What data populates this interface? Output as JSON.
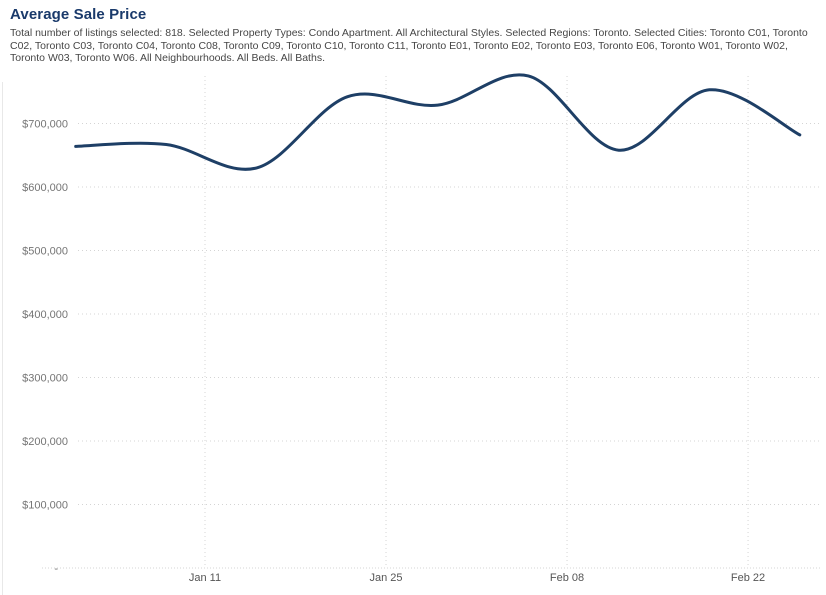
{
  "chart": {
    "title": "Average Sale Price",
    "subtitle": "Total number of listings selected: 818. Selected Property Types: Condo Apartment. All Architectural Styles. Selected Regions: Toronto. Selected Cities: Toronto C01, Toronto C02, Toronto C03, Toronto C04, Toronto C08, Toronto C09, Toronto C10, Toronto C11, Toronto E01, Toronto E02, Toronto E03, Toronto E06, Toronto W01, Toronto W02, Toronto W03, Toronto W06. All Neighbourhoods. All Beds. All Baths.",
    "title_color": "#1a3a6b",
    "subtitle_color": "#464646"
  },
  "chart_data": {
    "type": "line",
    "title": "Average Sale Price",
    "x": [
      "Jan 01",
      "Jan 08",
      "Jan 15",
      "Jan 22",
      "Jan 29",
      "Feb 05",
      "Feb 12",
      "Feb 19",
      "Feb 26"
    ],
    "x_days": [
      0,
      7,
      14,
      21,
      28,
      35,
      42,
      49,
      56
    ],
    "values": [
      664000,
      667000,
      630000,
      742000,
      729000,
      775000,
      658000,
      753000,
      682000
    ],
    "x_tick_labels": [
      "Jan 11",
      "Jan 25",
      "Feb 08",
      "Feb 22"
    ],
    "x_tick_days": [
      10,
      24,
      38,
      52
    ],
    "y_tick_labels": [
      "-",
      "$100,000",
      "$200,000",
      "$300,000",
      "$400,000",
      "$500,000",
      "$600,000",
      "$700,000"
    ],
    "y_tick_values": [
      0,
      100000,
      200000,
      300000,
      400000,
      500000,
      600000,
      700000
    ],
    "ylim": [
      0,
      800000
    ],
    "xlabel": "",
    "ylabel": "",
    "grid": "dotted",
    "legend": "none",
    "line_color": "#1e3f66",
    "grid_color": "#d4d4d4",
    "y_label_color": "#757575",
    "x_label_color": "#555555"
  }
}
